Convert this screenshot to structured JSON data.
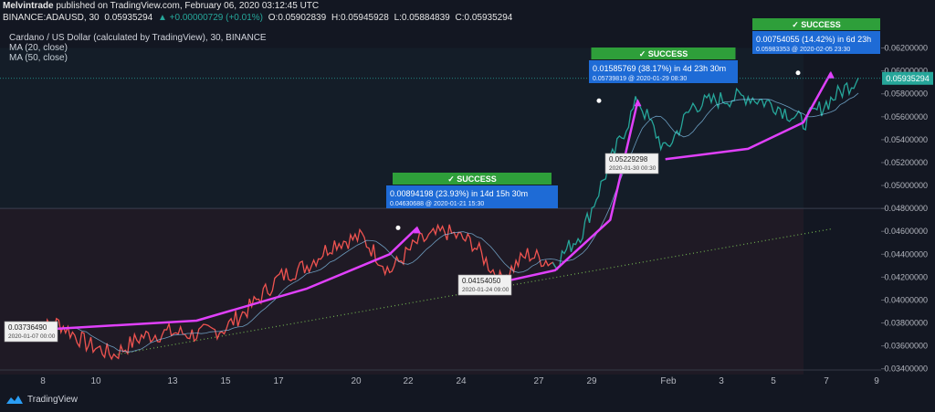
{
  "header": {
    "author": "Melvintrade",
    "published": "published on TradingView.com, February 06, 2020 03:12:45 UTC",
    "symbol": "BINANCE:ADAUSD, 30",
    "last": "0.05935294",
    "change": "▲ +0.00000729 (+0.01%)",
    "open": "O:0.05902839",
    "high": "H:0.05945928",
    "low": "L:0.05884839",
    "close": "C:0.05935294"
  },
  "legend": {
    "title": "Cardano / US Dollar (calculated by TradingView), 30, BINANCE",
    "ma20": "MA (20, close)",
    "ma50": "MA (50, close)"
  },
  "footer": {
    "brand": "TradingView"
  },
  "colors": {
    "background": "#131722",
    "down_candle": "#ef5350",
    "up_candle": "#26a69a",
    "trend_curve": "#e040fb",
    "ma": "#8fd3ff",
    "success": "#2e9f3a",
    "callout": "#1e6bd6",
    "trendline": "#6fae4f",
    "price_label": "#26a69a"
  },
  "chart_data": {
    "type": "line",
    "x_ticks": [
      "8",
      "10",
      "13",
      "15",
      "17",
      "20",
      "22",
      "24",
      "27",
      "29",
      "Feb",
      "3",
      "5",
      "7",
      "9"
    ],
    "y_ticks": [
      "0.06200000",
      "0.06000000",
      "0.05800000",
      "0.05600000",
      "0.05400000",
      "0.05200000",
      "0.05000000",
      "0.04800000",
      "0.04600000",
      "0.04400000",
      "0.04200000",
      "0.04000000",
      "0.03800000",
      "0.03600000",
      "0.03400000"
    ],
    "ylim": [
      0.0331,
      0.0638
    ],
    "current_price": "0.05935294",
    "price_series": {
      "name": "ADAUSD",
      "x": [
        "2020-01-07",
        "2020-01-08",
        "2020-01-09",
        "2020-01-10",
        "2020-01-11",
        "2020-01-12",
        "2020-01-13",
        "2020-01-14",
        "2020-01-15",
        "2020-01-16",
        "2020-01-17",
        "2020-01-18",
        "2020-01-19",
        "2020-01-20",
        "2020-01-21",
        "2020-01-22",
        "2020-01-23",
        "2020-01-24",
        "2020-01-25",
        "2020-01-26",
        "2020-01-27",
        "2020-01-28",
        "2020-01-29",
        "2020-01-30",
        "2020-01-31",
        "2020-02-01",
        "2020-02-02",
        "2020-02-03",
        "2020-02-04",
        "2020-02-05",
        "2020-02-06"
      ],
      "values": [
        0.0372,
        0.038,
        0.0362,
        0.0352,
        0.0368,
        0.0372,
        0.037,
        0.0375,
        0.0395,
        0.042,
        0.043,
        0.045,
        0.0455,
        0.0425,
        0.045,
        0.046,
        0.045,
        0.0418,
        0.044,
        0.0432,
        0.046,
        0.052,
        0.0575,
        0.053,
        0.057,
        0.0575,
        0.0578,
        0.057,
        0.0555,
        0.0575,
        0.0594
      ]
    },
    "trend_curves": [
      {
        "x": [
          "2020-01-07",
          "2020-01-13",
          "2020-01-17",
          "2020-01-20",
          "2020-01-21"
        ],
        "values": [
          0.03737,
          0.0382,
          0.041,
          0.044,
          0.04631
        ]
      },
      {
        "x": [
          "2020-01-24",
          "2020-01-26",
          "2020-01-28",
          "2020-01-29"
        ],
        "values": [
          0.04154,
          0.0426,
          0.047,
          0.0574
        ]
      },
      {
        "x": [
          "2020-01-30",
          "2020-02-02",
          "2020-02-04",
          "2020-02-05"
        ],
        "values": [
          0.05229,
          0.0532,
          0.0555,
          0.05983
        ]
      }
    ],
    "trendline": {
      "x": [
        "2020-01-10",
        "2020-02-05"
      ],
      "values": [
        0.0352,
        0.0462
      ]
    },
    "annotations": {
      "low1": {
        "price": "0.03736490",
        "time": "2020-01-07 00:00"
      },
      "low2": {
        "price": "0.04154050",
        "time": "2020-01-24 09:00"
      },
      "low3": {
        "price": "0.05229298",
        "time": "2020-01-30 00:30"
      },
      "success1": {
        "badge": "✓ SUCCESS",
        "gain": "0.00894198 (23.93%) in 14d 15h 30m",
        "detail": "0.04630688 @ 2020-01-21  15:30"
      },
      "success2": {
        "badge": "✓ SUCCESS",
        "gain": "0.01585769 (38.17%) in 4d 23h 30m",
        "detail": "0.05739819 @ 2020-01-29  08:30"
      },
      "success3": {
        "badge": "✓ SUCCESS",
        "gain": "0.00754055 (14.42%) in 6d 23h",
        "detail": "0.05983353 @ 2020-02-05  23:30"
      }
    }
  }
}
